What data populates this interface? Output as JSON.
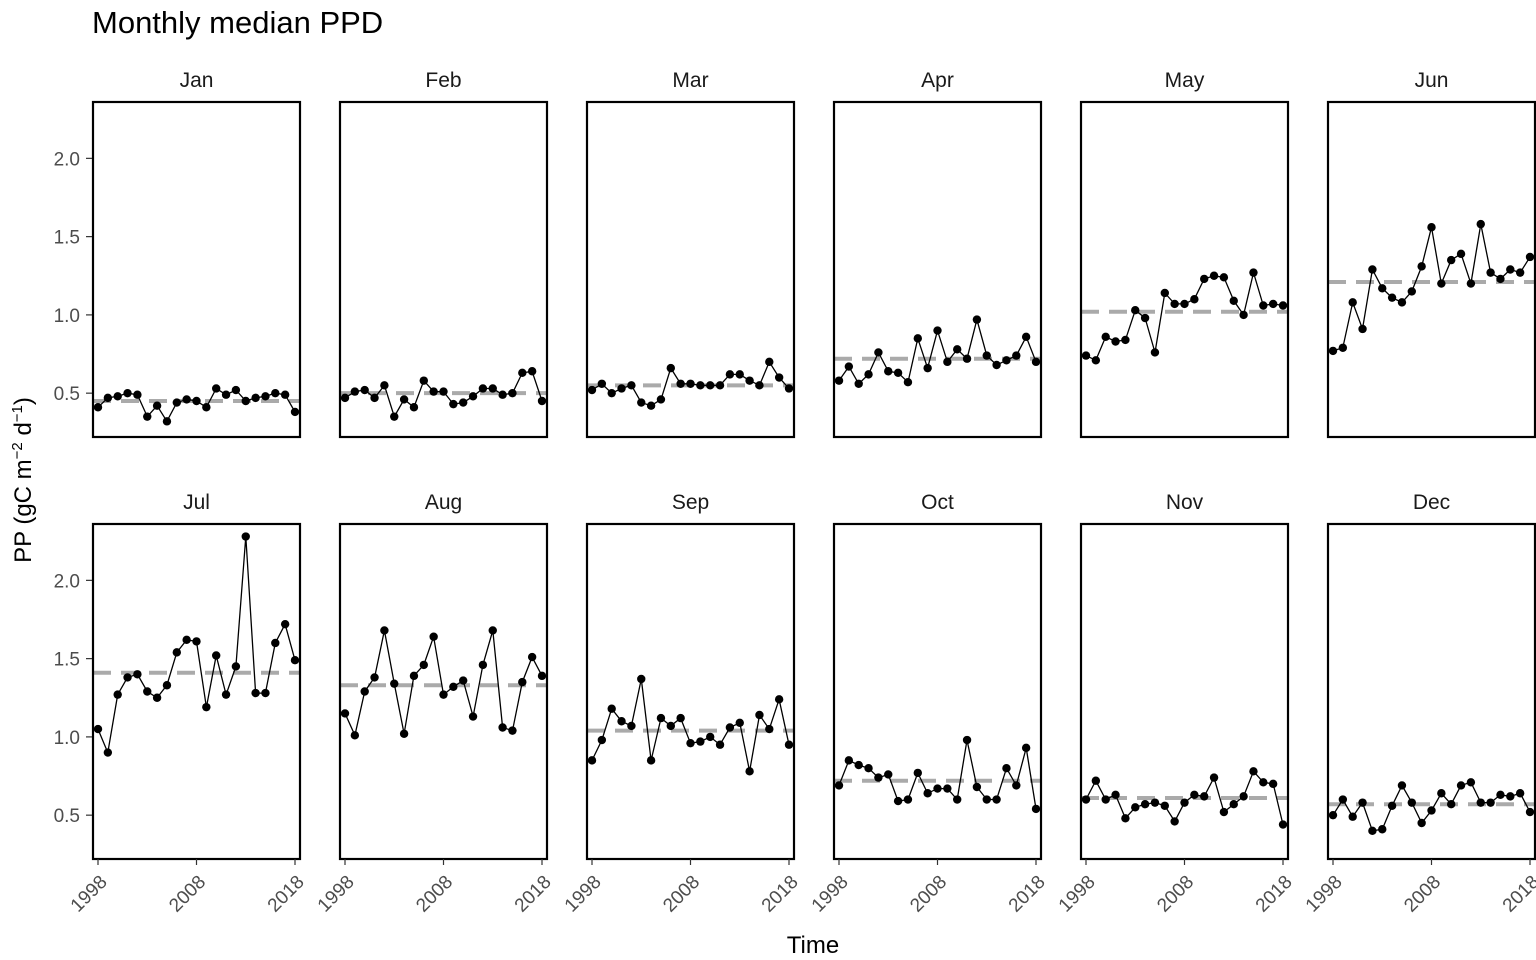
{
  "chart_data": {
    "type": "line",
    "title": "Monthly median PPD",
    "xlabel": "Time",
    "ylabel": "PP (gC m−2 d−1)",
    "ylabel_parts": {
      "main": "PP (gC m",
      "exp1": "−2",
      "mid": " d",
      "exp2": "−1",
      "end": ")"
    },
    "x": [
      1998,
      1999,
      2000,
      2001,
      2002,
      2003,
      2004,
      2005,
      2006,
      2007,
      2008,
      2009,
      2010,
      2011,
      2012,
      2013,
      2014,
      2015,
      2016,
      2017,
      2018
    ],
    "xticks": [
      1998,
      2008,
      2018
    ],
    "xlim": [
      1998,
      2018
    ],
    "ylim": [
      0.22,
      2.36
    ],
    "yticks": [
      0.5,
      1.0,
      1.5,
      2.0
    ],
    "ytick_labels": [
      "0.5",
      "1.0",
      "1.5",
      "2.0"
    ],
    "grid": false,
    "line_color": "#000000",
    "mean_line_color": "#aaaaaa",
    "panels": [
      {
        "name": "Jan",
        "mean": 0.45,
        "values": [
          0.41,
          0.47,
          0.48,
          0.5,
          0.49,
          0.35,
          0.42,
          0.32,
          0.44,
          0.46,
          0.45,
          0.41,
          0.53,
          0.49,
          0.52,
          0.45,
          0.47,
          0.48,
          0.5,
          0.49,
          0.38
        ]
      },
      {
        "name": "Feb",
        "mean": 0.5,
        "values": [
          0.47,
          0.51,
          0.52,
          0.47,
          0.55,
          0.35,
          0.46,
          0.41,
          0.58,
          0.51,
          0.51,
          0.43,
          0.44,
          0.48,
          0.53,
          0.53,
          0.49,
          0.5,
          0.63,
          0.64,
          0.45
        ]
      },
      {
        "name": "Mar",
        "mean": 0.55,
        "values": [
          0.52,
          0.56,
          0.5,
          0.53,
          0.55,
          0.44,
          0.42,
          0.46,
          0.66,
          0.56,
          0.56,
          0.55,
          0.55,
          0.55,
          0.62,
          0.62,
          0.58,
          0.55,
          0.7,
          0.6,
          0.53
        ]
      },
      {
        "name": "Apr",
        "mean": 0.72,
        "values": [
          0.58,
          0.67,
          0.56,
          0.62,
          0.76,
          0.64,
          0.63,
          0.57,
          0.85,
          0.66,
          0.9,
          0.7,
          0.78,
          0.72,
          0.97,
          0.74,
          0.68,
          0.71,
          0.74,
          0.86,
          0.7
        ]
      },
      {
        "name": "May",
        "mean": 1.02,
        "values": [
          0.74,
          0.71,
          0.86,
          0.83,
          0.84,
          1.03,
          0.98,
          0.76,
          1.14,
          1.07,
          1.07,
          1.1,
          1.23,
          1.25,
          1.24,
          1.09,
          1.0,
          1.27,
          1.06,
          1.07,
          1.06
        ]
      },
      {
        "name": "Jun",
        "mean": 1.21,
        "values": [
          0.77,
          0.79,
          1.08,
          0.91,
          1.29,
          1.17,
          1.11,
          1.08,
          1.15,
          1.31,
          1.56,
          1.2,
          1.35,
          1.39,
          1.2,
          1.58,
          1.27,
          1.23,
          1.29,
          1.27,
          1.37
        ]
      },
      {
        "name": "Jul",
        "mean": 1.41,
        "values": [
          1.05,
          0.9,
          1.27,
          1.38,
          1.4,
          1.29,
          1.25,
          1.33,
          1.54,
          1.62,
          1.61,
          1.19,
          1.52,
          1.27,
          1.45,
          2.28,
          1.28,
          1.28,
          1.6,
          1.72,
          1.49
        ]
      },
      {
        "name": "Aug",
        "mean": 1.33,
        "values": [
          1.15,
          1.01,
          1.29,
          1.38,
          1.68,
          1.34,
          1.02,
          1.39,
          1.46,
          1.64,
          1.27,
          1.32,
          1.36,
          1.13,
          1.46,
          1.68,
          1.06,
          1.04,
          1.35,
          1.51,
          1.39
        ]
      },
      {
        "name": "Sep",
        "mean": 1.04,
        "values": [
          0.85,
          0.98,
          1.18,
          1.1,
          1.07,
          1.37,
          0.85,
          1.12,
          1.07,
          1.12,
          0.96,
          0.97,
          1.0,
          0.95,
          1.06,
          1.09,
          0.78,
          1.14,
          1.05,
          1.24,
          0.95
        ]
      },
      {
        "name": "Oct",
        "mean": 0.72,
        "values": [
          0.69,
          0.85,
          0.82,
          0.8,
          0.74,
          0.76,
          0.59,
          0.6,
          0.77,
          0.64,
          0.67,
          0.67,
          0.6,
          0.98,
          0.68,
          0.6,
          0.6,
          0.8,
          0.69,
          0.93,
          0.54
        ]
      },
      {
        "name": "Nov",
        "mean": 0.61,
        "values": [
          0.6,
          0.72,
          0.6,
          0.63,
          0.48,
          0.55,
          0.57,
          0.58,
          0.56,
          0.46,
          0.58,
          0.63,
          0.62,
          0.74,
          0.52,
          0.57,
          0.62,
          0.78,
          0.71,
          0.7,
          0.44
        ]
      },
      {
        "name": "Dec",
        "mean": 0.57,
        "values": [
          0.5,
          0.6,
          0.49,
          0.58,
          0.4,
          0.41,
          0.56,
          0.69,
          0.58,
          0.45,
          0.53,
          0.64,
          0.57,
          0.69,
          0.71,
          0.58,
          0.58,
          0.63,
          0.62,
          0.64,
          0.52
        ]
      }
    ]
  }
}
